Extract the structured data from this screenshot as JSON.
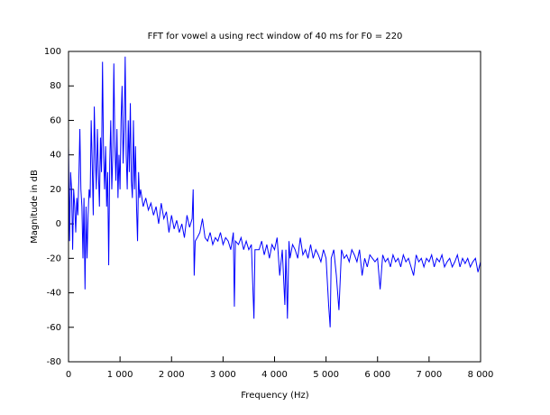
{
  "chart_data": {
    "type": "line",
    "title": "FFT for vowel a using rect window of 40 ms for F0 = 220",
    "x_label": "Frequency (Hz)",
    "y_label": "Magnitude in dB",
    "xlim": [
      0,
      8000
    ],
    "ylim": [
      -80,
      100
    ],
    "xticks": [
      0,
      {
        "value": 1000,
        "label": "1 000"
      },
      {
        "value": 2000,
        "label": "2 000"
      },
      {
        "value": 3000,
        "label": "3 000"
      },
      {
        "value": 4000,
        "label": "4 000"
      },
      {
        "value": 5000,
        "label": "5 000"
      },
      {
        "value": 6000,
        "label": "6 000"
      },
      {
        "value": 7000,
        "label": "7 000"
      },
      {
        "value": 8000,
        "label": "8 000"
      }
    ],
    "yticks": [
      -80,
      -60,
      -40,
      -20,
      0,
      20,
      40,
      60,
      80,
      100
    ],
    "grid": false,
    "series": [
      {
        "color": "#0000ff",
        "x": [
          0,
          20,
          40,
          60,
          80,
          100,
          120,
          140,
          160,
          180,
          200,
          220,
          240,
          260,
          280,
          300,
          320,
          340,
          360,
          380,
          400,
          420,
          440,
          460,
          480,
          500,
          520,
          540,
          560,
          580,
          600,
          620,
          640,
          660,
          680,
          700,
          720,
          740,
          760,
          780,
          800,
          820,
          840,
          860,
          880,
          900,
          920,
          940,
          960,
          980,
          1000,
          1020,
          1040,
          1060,
          1080,
          1100,
          1120,
          1140,
          1160,
          1180,
          1200,
          1220,
          1240,
          1260,
          1280,
          1300,
          1320,
          1340,
          1360,
          1380,
          1400,
          1450,
          1500,
          1550,
          1600,
          1650,
          1700,
          1750,
          1800,
          1850,
          1900,
          1950,
          2000,
          2050,
          2100,
          2150,
          2200,
          2250,
          2300,
          2350,
          2400,
          2420,
          2440,
          2460,
          2500,
          2550,
          2600,
          2650,
          2700,
          2750,
          2800,
          2850,
          2900,
          2950,
          3000,
          3050,
          3100,
          3150,
          3200,
          3220,
          3240,
          3300,
          3350,
          3400,
          3450,
          3500,
          3550,
          3600,
          3620,
          3700,
          3750,
          3800,
          3850,
          3900,
          3950,
          4000,
          4050,
          4100,
          4150,
          4200,
          4220,
          4250,
          4280,
          4300,
          4350,
          4400,
          4450,
          4500,
          4550,
          4600,
          4650,
          4700,
          4750,
          4800,
          4850,
          4900,
          4950,
          5000,
          5050,
          5080,
          5100,
          5150,
          5200,
          5250,
          5300,
          5350,
          5400,
          5450,
          5500,
          5550,
          5600,
          5650,
          5700,
          5750,
          5800,
          5850,
          5900,
          5950,
          6000,
          6050,
          6100,
          6150,
          6200,
          6250,
          6300,
          6350,
          6400,
          6450,
          6500,
          6550,
          6600,
          6650,
          6700,
          6750,
          6800,
          6850,
          6900,
          6950,
          7000,
          7050,
          7100,
          7150,
          7200,
          7250,
          7300,
          7350,
          7400,
          7450,
          7500,
          7550,
          7600,
          7650,
          7700,
          7750,
          7800,
          7850,
          7900,
          7950,
          8000
        ],
        "values": [
          45,
          -10,
          30,
          20,
          -15,
          20,
          10,
          -5,
          15,
          5,
          25,
          55,
          20,
          10,
          -20,
          15,
          -38,
          10,
          -20,
          5,
          20,
          15,
          60,
          35,
          5,
          68,
          40,
          20,
          55,
          30,
          10,
          50,
          30,
          94,
          40,
          20,
          45,
          10,
          30,
          -24,
          35,
          60,
          20,
          40,
          93,
          45,
          25,
          55,
          15,
          40,
          20,
          60,
          80,
          35,
          55,
          97,
          40,
          20,
          60,
          30,
          70,
          25,
          15,
          60,
          20,
          45,
          10,
          -10,
          30,
          15,
          20,
          10,
          15,
          8,
          12,
          5,
          10,
          0,
          12,
          3,
          7,
          -5,
          5,
          -3,
          2,
          -5,
          0,
          -8,
          5,
          -2,
          3,
          20,
          -30,
          -10,
          -8,
          -5,
          3,
          -8,
          -10,
          -5,
          -12,
          -8,
          -10,
          -5,
          -12,
          -8,
          -10,
          -15,
          -5,
          -48,
          -10,
          -12,
          -8,
          -15,
          -10,
          -15,
          -12,
          -55,
          -15,
          -15,
          -10,
          -18,
          -12,
          -20,
          -12,
          -15,
          -8,
          -30,
          -15,
          -47,
          -15,
          -55,
          -10,
          -20,
          -12,
          -15,
          -20,
          -8,
          -18,
          -15,
          -20,
          -12,
          -20,
          -15,
          -18,
          -22,
          -15,
          -20,
          -47,
          -60,
          -20,
          -15,
          -30,
          -50,
          -15,
          -20,
          -18,
          -22,
          -15,
          -18,
          -22,
          -15,
          -30,
          -20,
          -25,
          -18,
          -20,
          -22,
          -20,
          -38,
          -18,
          -22,
          -20,
          -25,
          -18,
          -22,
          -20,
          -25,
          -18,
          -22,
          -20,
          -25,
          -30,
          -18,
          -22,
          -20,
          -25,
          -20,
          -22,
          -18,
          -25,
          -20,
          -22,
          -18,
          -25,
          -22,
          -20,
          -25,
          -22,
          -18,
          -25,
          -20,
          -23,
          -20,
          -25,
          -22,
          -20,
          -28,
          -22
        ]
      }
    ]
  }
}
